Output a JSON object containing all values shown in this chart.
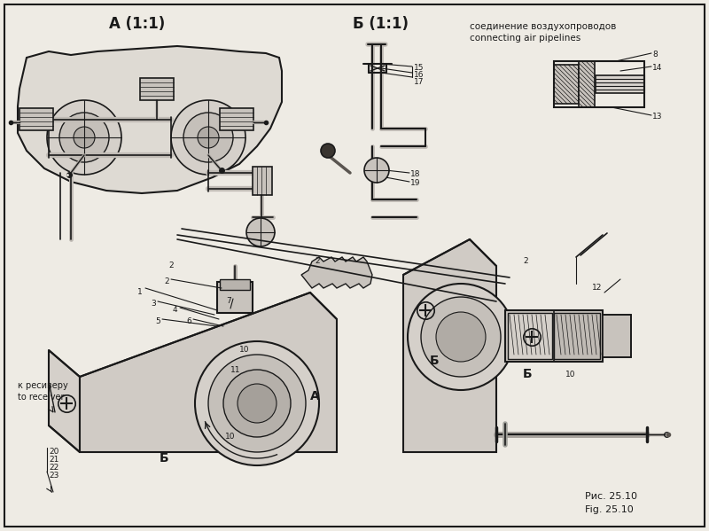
{
  "bg_color": "#eeebe4",
  "title_A": "А (1:1)",
  "title_B": "Б (1:1)",
  "fig_label_ru": "Рис. 25.10",
  "fig_label_en": "Fig. 25.10",
  "note_ru": "соединение воздухопроводов",
  "note_en": "connecting air pipelines",
  "receiver_ru": "к ресиверу",
  "receiver_en": "to receiver",
  "label_A": "A",
  "label_B": "Б",
  "text_color": "#1a1a1a",
  "line_color": "#1a1a1a",
  "blob_color": "#dedad3",
  "blob_edge": "#1a1a1a"
}
